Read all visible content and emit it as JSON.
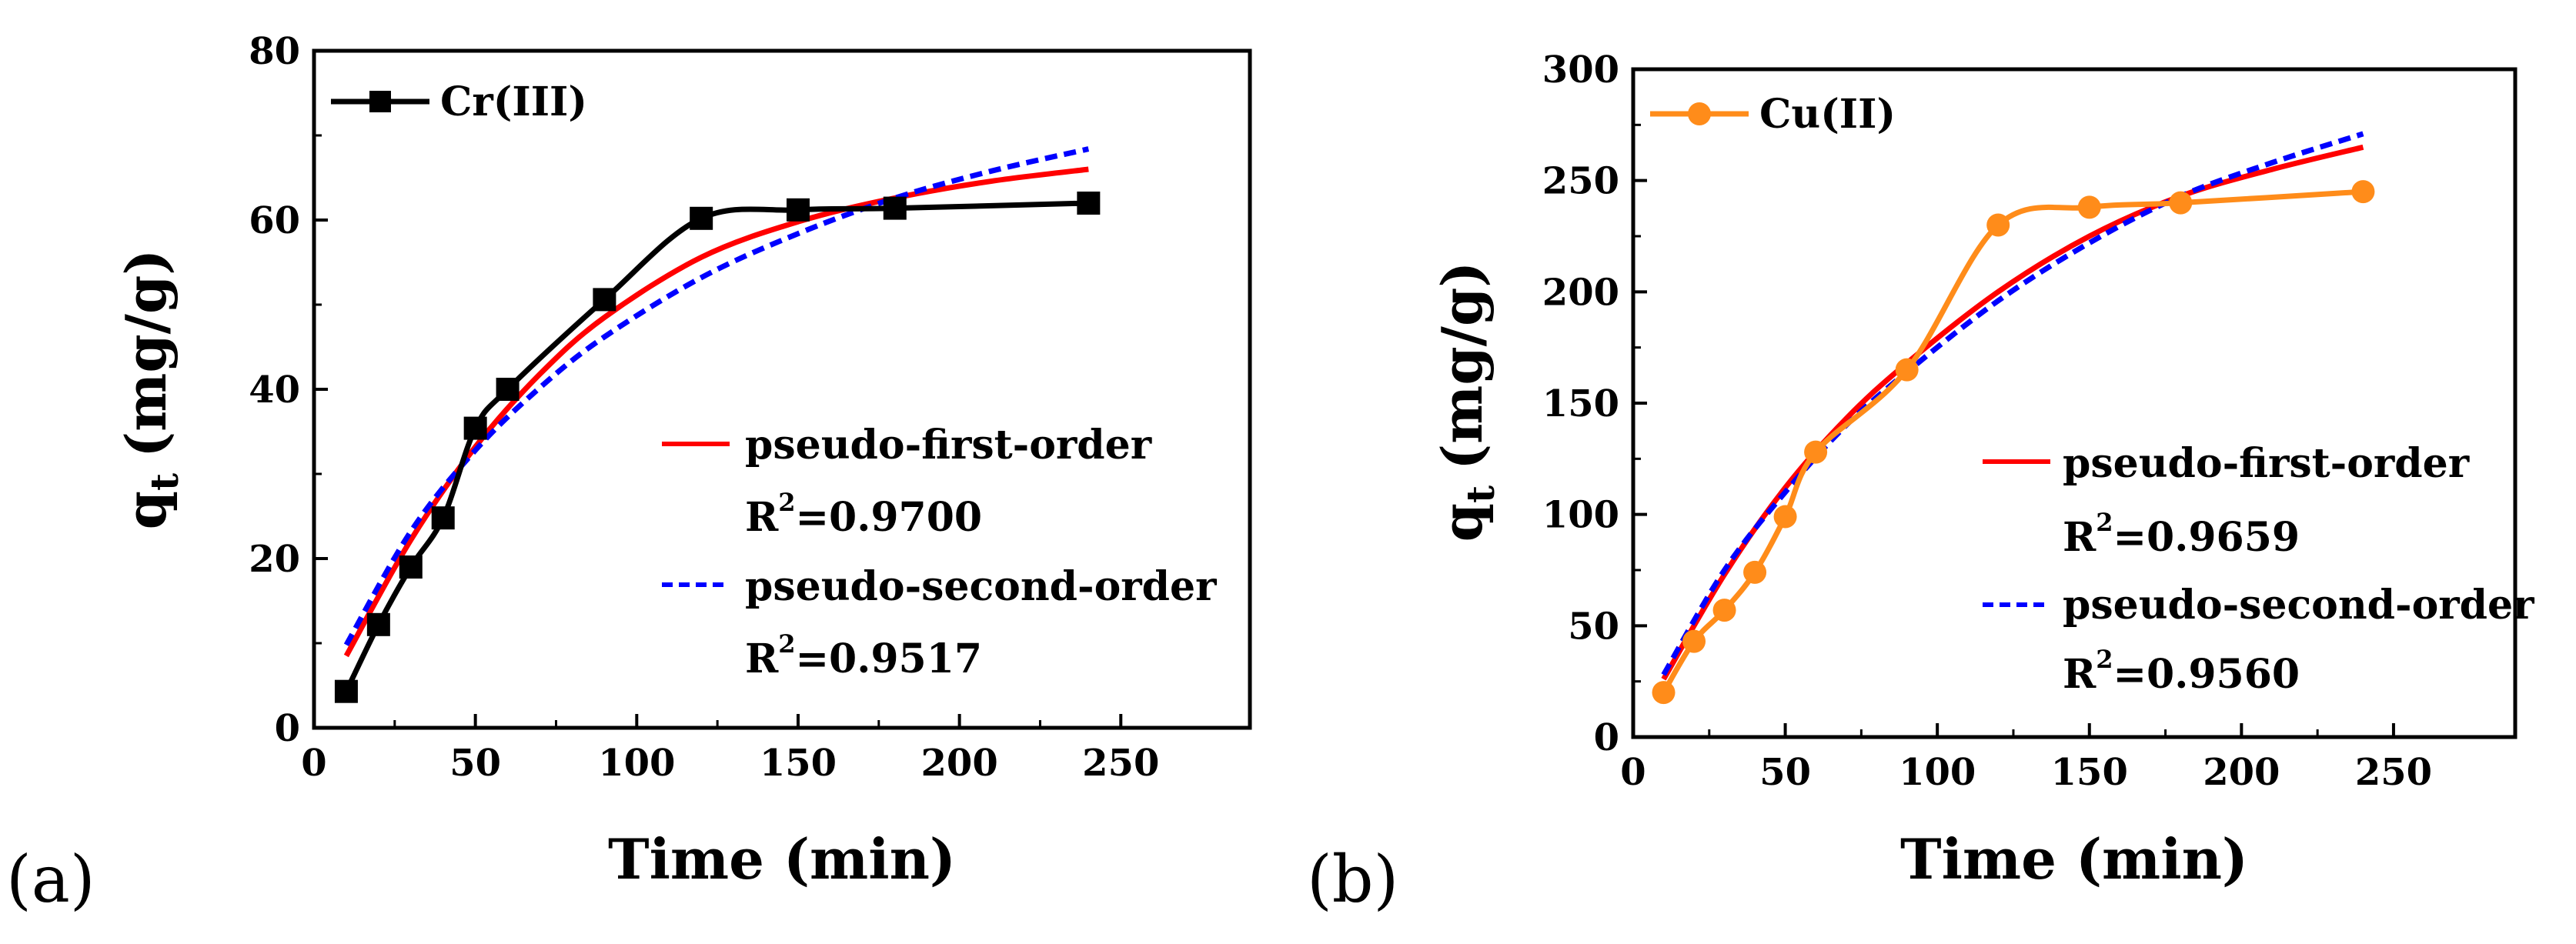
{
  "chart_data": [
    {
      "type": "line",
      "panel_label": "(a)",
      "xlabel": "Time (min)",
      "ylabel_main": "q",
      "ylabel_sub": "t",
      "ylabel_unit": "(mg/g)",
      "xlim": [
        0,
        290
      ],
      "ylim": [
        0,
        80
      ],
      "xticks": [
        0,
        50,
        100,
        150,
        200,
        250
      ],
      "yticks": [
        0,
        20,
        40,
        60,
        80
      ],
      "data_series": {
        "name": "Cr(III)",
        "color": "#000000",
        "marker": "square",
        "x": [
          10,
          20,
          30,
          40,
          50,
          60,
          90,
          120,
          150,
          180,
          240
        ],
        "y": [
          4.3,
          12.2,
          19.0,
          24.8,
          35.4,
          40.0,
          50.6,
          60.2,
          61.2,
          61.4,
          62.0
        ]
      },
      "fits": [
        {
          "name": "pseudo-first-order",
          "r2_label": "R",
          "r2_sup": "2",
          "r2_value": "=0.9700",
          "color": "#ff0000",
          "style": "solid",
          "x": [
            10,
            30,
            50,
            70,
            90,
            120,
            150,
            180,
            210,
            240
          ],
          "y": [
            8.5,
            22.2,
            33.2,
            41.8,
            48.5,
            55.6,
            59.8,
            62.6,
            64.6,
            66.0
          ]
        },
        {
          "name": "pseudo-second-order",
          "r2_label": "R",
          "r2_sup": "2",
          "r2_value": "=0.9517",
          "color": "#0000ff",
          "style": "dashed",
          "x": [
            10,
            30,
            50,
            70,
            90,
            120,
            150,
            180,
            210,
            240
          ],
          "y": [
            9.8,
            23.2,
            32.8,
            40.2,
            46.2,
            53.2,
            58.4,
            62.6,
            65.8,
            68.4
          ]
        }
      ]
    },
    {
      "type": "line",
      "panel_label": "(b)",
      "xlabel": "Time (min)",
      "ylabel_main": "q",
      "ylabel_sub": "t",
      "ylabel_unit": "(mg/g)",
      "xlim": [
        0,
        290
      ],
      "ylim": [
        0,
        300
      ],
      "xticks": [
        0,
        50,
        100,
        150,
        200,
        250
      ],
      "yticks": [
        0,
        50,
        100,
        150,
        200,
        250,
        300
      ],
      "data_series": {
        "name": "Cu(II)",
        "color": "#ff8c1a",
        "marker": "circle",
        "x": [
          10,
          20,
          30,
          40,
          50,
          60,
          90,
          120,
          150,
          180,
          240
        ],
        "y": [
          20,
          43,
          57,
          74,
          99,
          128,
          165,
          230,
          238,
          240,
          245
        ]
      },
      "fits": [
        {
          "name": "pseudo-first-order",
          "r2_label": "R",
          "r2_sup": "2",
          "r2_value": "=0.9659",
          "color": "#ff0000",
          "style": "solid",
          "x": [
            10,
            30,
            50,
            70,
            90,
            120,
            150,
            180,
            210,
            240
          ],
          "y": [
            26,
            73,
            112,
            143,
            168,
            200,
            225,
            243,
            255,
            265
          ]
        },
        {
          "name": "pseudo-second-order",
          "r2_label": "R",
          "r2_sup": "2",
          "r2_value": "=0.9560",
          "color": "#0000ff",
          "style": "dashed",
          "x": [
            10,
            30,
            50,
            70,
            90,
            120,
            150,
            180,
            210,
            240
          ],
          "y": [
            28,
            75,
            110,
            140,
            164,
            196,
            222,
            243,
            258,
            271
          ]
        }
      ]
    }
  ]
}
